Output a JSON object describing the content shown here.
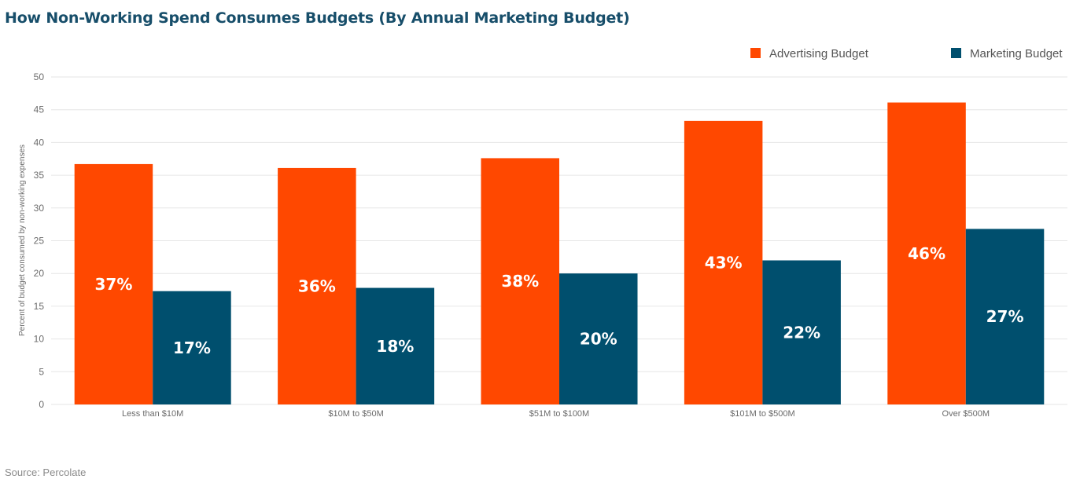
{
  "source": "Source: Percolate",
  "colors": {
    "advertising": "#ff4800",
    "marketing": "#004f6e",
    "grid": "#e6e6e6",
    "title": "#174e6a"
  },
  "chart_data": {
    "type": "bar",
    "title": "How Non-Working Spend Consumes Budgets (By Annual Marketing Budget)",
    "xlabel": "",
    "ylabel": "Percent of budget consumed by non-working expenses",
    "ylim": [
      0,
      50
    ],
    "yticks": [
      0,
      5,
      10,
      15,
      20,
      25,
      30,
      35,
      40,
      45,
      50
    ],
    "grid": true,
    "legend_position": "top-right",
    "categories": [
      "Less than $10M",
      "$10M to $50M",
      "$51M to $100M",
      "$101M to $500M",
      "Over $500M"
    ],
    "series": [
      {
        "name": "Advertising Budget",
        "values": [
          36.7,
          36.1,
          37.6,
          43.3,
          46.1
        ],
        "labels": [
          "37%",
          "36%",
          "38%",
          "43%",
          "46%"
        ]
      },
      {
        "name": "Marketing Budget",
        "values": [
          17.3,
          17.8,
          20.0,
          22.0,
          26.8
        ],
        "labels": [
          "17%",
          "18%",
          "20%",
          "22%",
          "27%"
        ]
      }
    ]
  }
}
